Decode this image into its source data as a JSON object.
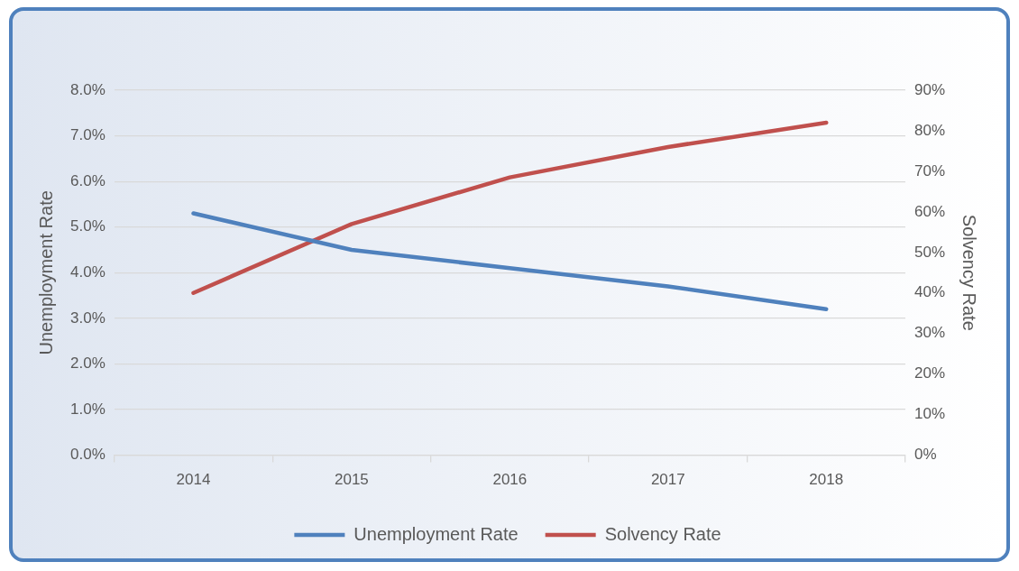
{
  "chart_data": {
    "type": "line",
    "categories": [
      "2014",
      "2015",
      "2016",
      "2017",
      "2018"
    ],
    "series": [
      {
        "name": "Unemployment Rate",
        "color": "#4f81bd",
        "values": [
          5.3,
          4.5,
          4.1,
          3.7,
          3.2
        ]
      },
      {
        "name": "Solvency Rate",
        "color": "#c0504d",
        "values": [
          40,
          57,
          68.5,
          76,
          82
        ],
        "axis": "y2"
      }
    ],
    "ylabel": "Unemployment Rate",
    "y2label": "Solvency Rate",
    "ylim": [
      0,
      8
    ],
    "yticks": [
      {
        "value": 0,
        "label": "0.0%"
      },
      {
        "value": 1,
        "label": "1.0%"
      },
      {
        "value": 2,
        "label": "2.0%"
      },
      {
        "value": 3,
        "label": "3.0%"
      },
      {
        "value": 4,
        "label": "4.0%"
      },
      {
        "value": 5,
        "label": "5.0%"
      },
      {
        "value": 6,
        "label": "6.0%"
      },
      {
        "value": 7,
        "label": "7.0%"
      },
      {
        "value": 8,
        "label": "8.0%"
      }
    ],
    "y2lim": [
      0,
      90
    ],
    "y2ticks": [
      {
        "value": 0,
        "label": "0%"
      },
      {
        "value": 10,
        "label": "10%"
      },
      {
        "value": 20,
        "label": "20%"
      },
      {
        "value": 30,
        "label": "30%"
      },
      {
        "value": 40,
        "label": "40%"
      },
      {
        "value": 50,
        "label": "50%"
      },
      {
        "value": 60,
        "label": "60%"
      },
      {
        "value": 70,
        "label": "70%"
      },
      {
        "value": 80,
        "label": "80%"
      },
      {
        "value": 90,
        "label": "90%"
      }
    ],
    "grid": "y",
    "legend": "bottom",
    "marker": "none",
    "line_style": "solid"
  }
}
